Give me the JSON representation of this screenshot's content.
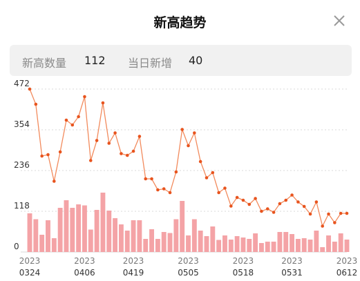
{
  "modal": {
    "title": "新高趋势",
    "close_icon": "close-icon"
  },
  "stats": {
    "count_label": "新高数量",
    "count_value": "112",
    "today_label": "当日新增",
    "today_value": "40"
  },
  "colors": {
    "line": "#f28a5c",
    "point": "#e8541e",
    "bar": "#f4a3a6",
    "grid": "#d8d8d8"
  },
  "chart_data": {
    "type": "bar+line",
    "y_ticks": [
      "472",
      "354",
      "236",
      "118",
      "0"
    ],
    "ylim": [
      0,
      472
    ],
    "x_labels": [
      {
        "year": "2023",
        "date": "0324"
      },
      {
        "year": "2023",
        "date": "0406"
      },
      {
        "year": "2023",
        "date": "0419"
      },
      {
        "year": "2023",
        "date": "0505"
      },
      {
        "year": "2023",
        "date": "0518"
      },
      {
        "year": "2023",
        "date": "0531"
      },
      {
        "year": "2023",
        "date": "0612"
      }
    ],
    "series": [
      {
        "values": [
          472,
          428,
          278,
          282,
          205,
          290,
          382,
          368,
          392,
          450,
          265,
          323,
          432,
          315,
          345,
          285,
          280,
          292,
          335,
          212,
          212,
          180,
          183,
          172,
          232,
          355,
          308,
          345,
          262,
          215,
          230,
          172,
          185,
          133,
          158,
          150,
          138,
          155,
          118,
          125,
          115,
          140,
          150,
          165,
          145,
          132,
          110,
          145,
          75,
          110,
          85,
          112,
          112
        ]
      },
      {
        "values": [
          112,
          95,
          50,
          92,
          40,
          128,
          150,
          128,
          138,
          135,
          65,
          122,
          172,
          120,
          98,
          80,
          62,
          92,
          92,
          38,
          66,
          38,
          58,
          55,
          95,
          148,
          48,
          95,
          62,
          46,
          74,
          35,
          48,
          36,
          46,
          42,
          38,
          54,
          26,
          30,
          30,
          58,
          58,
          52,
          38,
          40,
          36,
          62,
          14,
          48,
          30,
          54,
          36
        ]
      }
    ]
  }
}
